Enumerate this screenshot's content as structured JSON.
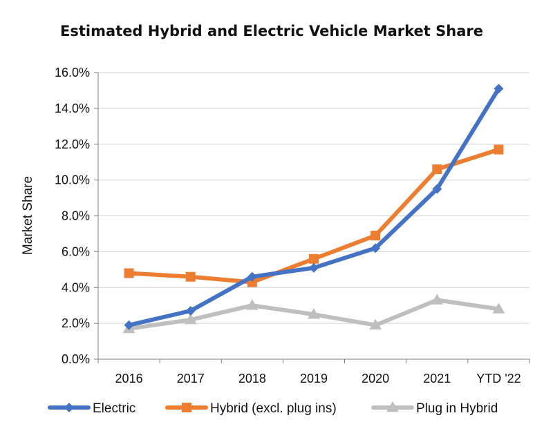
{
  "chart_data": {
    "type": "line",
    "title": "Estimated Hybrid and Electric Vehicle Market Share",
    "xlabel": "",
    "ylabel": "Market Share",
    "categories": [
      "2016",
      "2017",
      "2018",
      "2019",
      "2020",
      "2021",
      "YTD '22"
    ],
    "ylim": [
      0,
      16
    ],
    "yticks": [
      0,
      2,
      4,
      6,
      8,
      10,
      12,
      14,
      16
    ],
    "ytick_labels": [
      "0.0%",
      "2.0%",
      "4.0%",
      "6.0%",
      "8.0%",
      "10.0%",
      "12.0%",
      "14.0%",
      "16.0%"
    ],
    "grid": true,
    "legend_position": "bottom",
    "series": [
      {
        "name": "Electric",
        "color": "#4472C4",
        "marker": "diamond",
        "values": [
          1.9,
          2.7,
          4.6,
          5.1,
          6.2,
          9.5,
          15.1
        ]
      },
      {
        "name": "Hybrid (excl. plug ins)",
        "color": "#ED7D31",
        "marker": "square",
        "values": [
          4.8,
          4.6,
          4.3,
          5.6,
          6.9,
          10.6,
          11.7
        ]
      },
      {
        "name": "Plug in Hybrid",
        "color": "#BFBFBF",
        "marker": "triangle",
        "values": [
          1.7,
          2.2,
          3.0,
          2.5,
          1.9,
          3.3,
          2.8
        ]
      }
    ]
  }
}
